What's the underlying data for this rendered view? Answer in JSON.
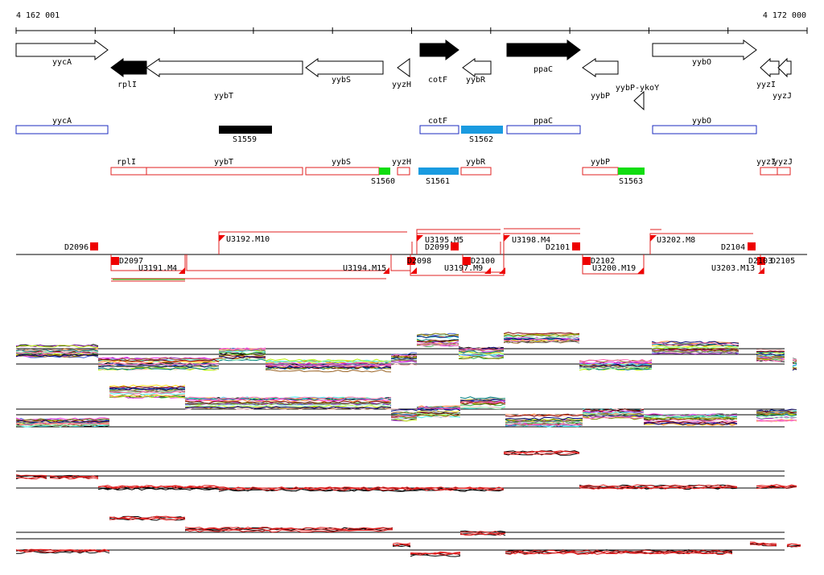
{
  "ruler": {
    "start_label": "4 162 001",
    "end_label": "4 172 000",
    "tick_count": 11
  },
  "colors": {
    "outline": "#000000",
    "filled_gene": "#000000",
    "blue_outline": "#1b2bbf",
    "red_outline": "#e02020",
    "black_segment": "#000000",
    "blue_segment": "#1a9be0",
    "green_segment": "#10dd10",
    "marker_red": "#ee0000"
  },
  "genes": [
    {
      "name": "yycA",
      "dir": "right",
      "filled": false
    },
    {
      "name": "rplI",
      "dir": "left",
      "filled": true
    },
    {
      "name": "yybT",
      "dir": "left",
      "filled": false
    },
    {
      "name": "yybS",
      "dir": "left",
      "filled": false
    },
    {
      "name": "yyzH",
      "dir": "left",
      "filled": false
    },
    {
      "name": "cotF",
      "dir": "right",
      "filled": true
    },
    {
      "name": "yybR",
      "dir": "left",
      "filled": false
    },
    {
      "name": "ppaC",
      "dir": "right",
      "filled": true
    },
    {
      "name": "yybP",
      "dir": "left",
      "filled": false
    },
    {
      "name": "yybP-ykoY",
      "dir": "left",
      "filled": false
    },
    {
      "name": "yybO",
      "dir": "right",
      "filled": false
    },
    {
      "name": "yyzI",
      "dir": "left",
      "filled": false
    },
    {
      "name": "yyzJ",
      "dir": "left",
      "filled": false
    }
  ],
  "blue_row_labels": [
    "yycA",
    "cotF",
    "ppaC",
    "yybO"
  ],
  "segments_row1": [
    "S1559",
    "S1562"
  ],
  "red_row_labels": [
    "rplI",
    "yybT",
    "yybS",
    "yyzH",
    "yybR",
    "yybP",
    "yyzI",
    "yyzJ"
  ],
  "segments_row2": [
    "S1560",
    "S1561",
    "S1563"
  ],
  "markers_above": [
    "D2096",
    "U3192.M10",
    "U3195.M5",
    "D2099",
    "U3198.M4",
    "D2101",
    "U3202.M8",
    "D2104"
  ],
  "markers_below": [
    "D2097",
    "U3191.M4",
    "U3194.M15",
    "D2098",
    "U3197.M9",
    "D2100",
    "D2102",
    "U3200.M19",
    "U3203.M13",
    "D2103",
    "D2105"
  ],
  "expression_panels": [
    "panel-1",
    "panel-2",
    "panel-3",
    "panel-4"
  ]
}
